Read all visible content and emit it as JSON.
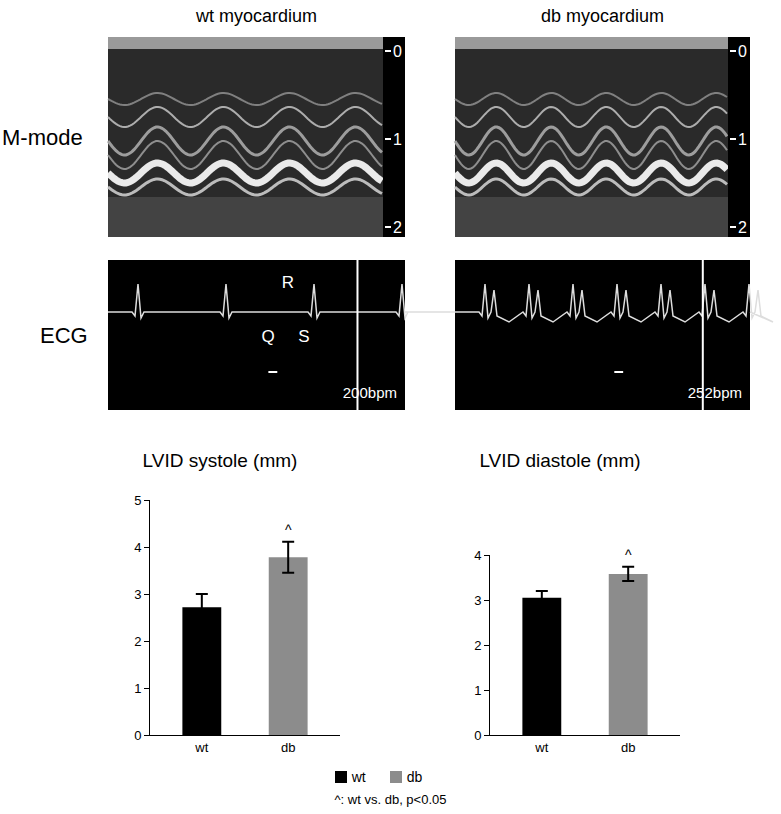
{
  "columns": [
    "wt myocardium",
    "db myocardium"
  ],
  "rows": [
    "M-mode",
    "ECG"
  ],
  "mmode_depth_ticks": [
    0,
    1,
    2
  ],
  "ecg": {
    "wave_labels": [
      "R",
      "Q",
      "S"
    ],
    "rates": [
      "200bpm",
      "252bpm"
    ]
  },
  "chart_data": [
    {
      "type": "bar",
      "title": "LVID systole (mm)",
      "categories": [
        "wt",
        "db"
      ],
      "values": [
        2.72,
        3.78
      ],
      "error": [
        0.28,
        0.33
      ],
      "colors": [
        "#000000",
        "#8c8c8c"
      ],
      "ylim": [
        0,
        5
      ],
      "yticks": [
        0,
        1,
        2,
        3,
        4,
        5
      ],
      "grid": false,
      "annotations": [
        {
          "category": "db",
          "text": "^"
        }
      ]
    },
    {
      "type": "bar",
      "title": "LVID diastole (mm)",
      "categories": [
        "wt",
        "db"
      ],
      "values": [
        3.05,
        3.58
      ],
      "error": [
        0.15,
        0.16
      ],
      "colors": [
        "#000000",
        "#8c8c8c"
      ],
      "ylim": [
        0,
        4
      ],
      "yticks": [
        0,
        1,
        2,
        3,
        4
      ],
      "grid": false,
      "annotations": [
        {
          "category": "db",
          "text": "^"
        }
      ]
    }
  ],
  "figure_legend": {
    "entries": [
      {
        "name": "wt",
        "color": "#000000"
      },
      {
        "name": "db",
        "color": "#8c8c8c"
      }
    ],
    "note": "^: wt vs. db, p<0.05"
  }
}
